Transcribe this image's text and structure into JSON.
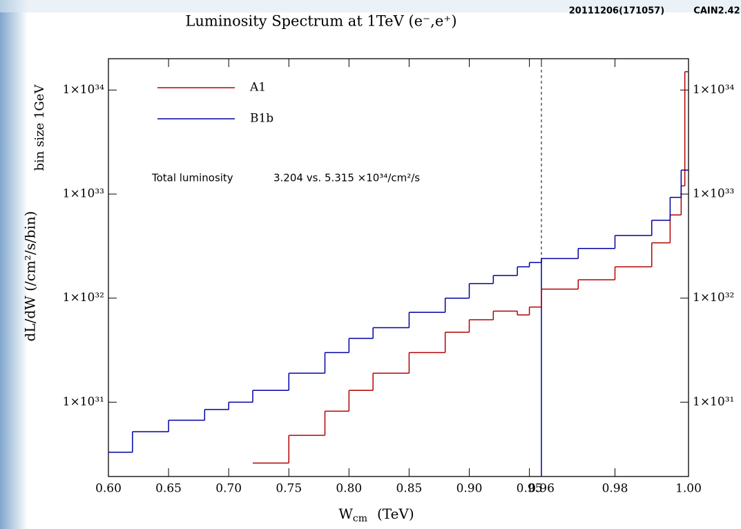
{
  "chart_data": {
    "type": "step",
    "title": "Luminosity Spectrum at 1TeV (e⁻,e⁺)",
    "run_id": "20111206(171057)",
    "version": "CAIN2.42",
    "y_label": "dL/dW  (/cm²/s/bin)",
    "y_label_note": "bin size 1GeV",
    "x_label": {
      "main": "W",
      "sub": "cm",
      "unit": "(TeV)"
    },
    "annotation": {
      "label": "Total luminosity",
      "text": "3.204 vs. 5.315 ×10³⁴/cm²/s"
    },
    "log_y": true,
    "x_break": 0.96,
    "x": [
      0.6,
      0.62,
      0.65,
      0.68,
      0.7,
      0.72,
      0.75,
      0.78,
      0.8,
      0.82,
      0.85,
      0.88,
      0.9,
      0.92,
      0.94,
      0.95,
      0.96,
      0.97,
      0.98,
      0.99,
      0.995,
      0.998,
      0.999
    ],
    "series": [
      {
        "name": "A1",
        "color": "#b00000",
        "values": [
          null,
          null,
          null,
          null,
          null,
          2.6e+30,
          4.8e+30,
          8.2e+30,
          1.3e+31,
          1.9e+31,
          3e+31,
          4.7e+31,
          6.2e+31,
          7.5e+31,
          6.9e+31,
          8.2e+31,
          1.22e+32,
          1.5e+32,
          2e+32,
          3.4e+32,
          6.3e+32,
          1.2e+33,
          1.5e+34
        ]
      },
      {
        "name": "B1b",
        "color": "#0000a0",
        "values": [
          3.3e+30,
          5.2e+30,
          6.7e+30,
          8.5e+30,
          1e+31,
          1.3e+31,
          1.9e+31,
          3e+31,
          4.1e+31,
          5.2e+31,
          7.3e+31,
          1e+32,
          1.38e+32,
          1.65e+32,
          2e+32,
          2.2e+32,
          2.4e+32,
          3e+32,
          4e+32,
          5.6e+32,
          9.3e+32,
          1.7e+33,
          1.7e+33
        ]
      }
    ],
    "xlim": [
      0.6,
      1.0
    ],
    "ylim": [
      1.93e+30,
      2e+34
    ],
    "xticks": [
      {
        "value": 0.6,
        "label": "0.60"
      },
      {
        "value": 0.65,
        "label": "0.65"
      },
      {
        "value": 0.7,
        "label": "0.70"
      },
      {
        "value": 0.75,
        "label": "0.75"
      },
      {
        "value": 0.8,
        "label": "0.80"
      },
      {
        "value": 0.85,
        "label": "0.85"
      },
      {
        "value": 0.9,
        "label": "0.90"
      },
      0.95,
      0.96,
      0.98,
      {
        "value": 1.0,
        "label": "1.00"
      }
    ],
    "yticks": [
      {
        "value": 1e+31,
        "label": "1×10³¹"
      },
      {
        "value": 1e+32,
        "label": "1×10³²"
      },
      {
        "value": 1e+33,
        "label": "1×10³³"
      },
      {
        "value": 1e+34,
        "label": "1×10³⁴"
      }
    ]
  }
}
